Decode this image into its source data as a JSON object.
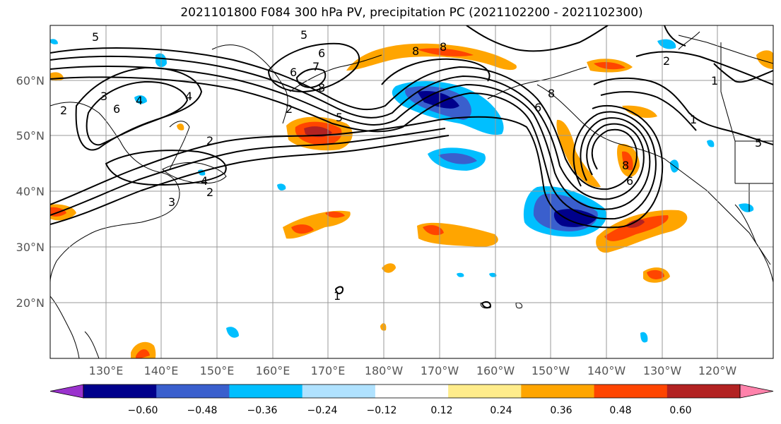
{
  "title": "2021101800 F084 300 hPa PV, precipitation PC (2021102200 - 2021102300)",
  "lat_labels": [
    "60°N",
    "50°N",
    "40°N",
    "30°N",
    "20°N"
  ],
  "lon_labels": [
    "130°E",
    "140°E",
    "150°E",
    "160°E",
    "170°E",
    "180°W",
    "170°W",
    "160°W",
    "150°W",
    "140°W",
    "130°W",
    "120°W"
  ],
  "colorbar": {
    "colors": [
      "#9a32cd",
      "#00008b",
      "#3a5fcd",
      "#00bfff",
      "#b0e2ff",
      "#ffffff",
      "#ffec8b",
      "#ffa500",
      "#ff4500",
      "#b22222",
      "#ff82ab"
    ],
    "tick_labels": [
      "−0.60",
      "−0.48",
      "−0.36",
      "−0.24",
      "−0.12",
      "0.12",
      "0.24",
      "0.36",
      "0.48",
      "0.60"
    ]
  },
  "contour_labels": [
    "5",
    "6",
    "7",
    "8",
    "5",
    "2",
    "4",
    "6",
    "2",
    "4",
    "3",
    "2",
    "4",
    "3",
    "2",
    "5",
    "8",
    "6",
    "8",
    "8",
    "6",
    "2",
    "1",
    "1",
    "1",
    "8",
    "6",
    "5"
  ]
}
